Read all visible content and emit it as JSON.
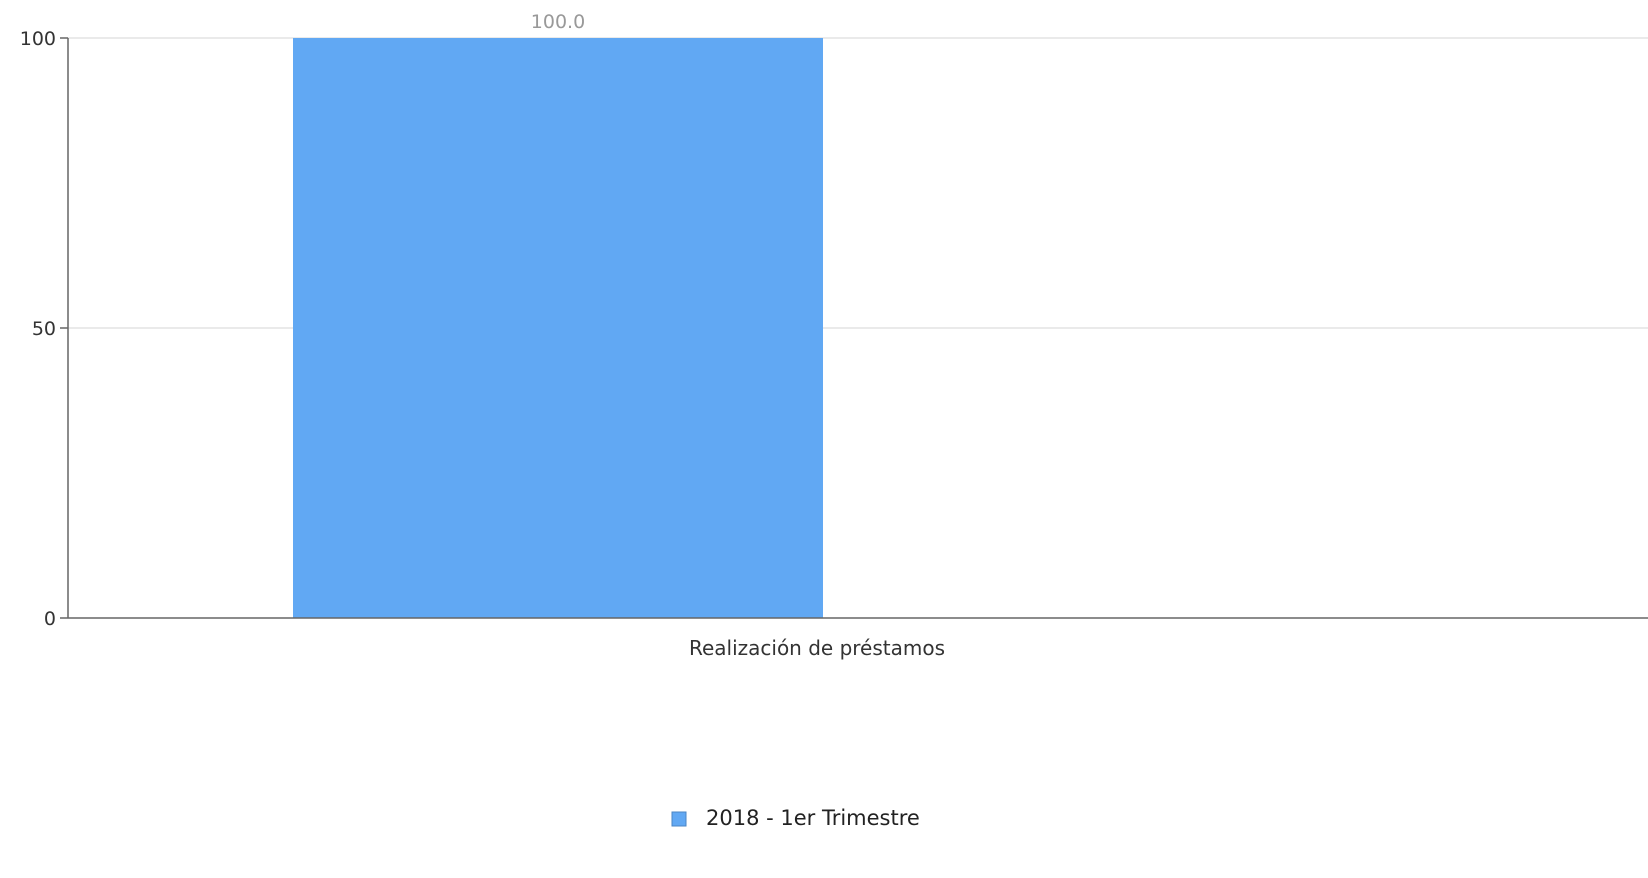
{
  "chart_data": {
    "type": "bar",
    "categories": [
      "Realización de préstamos"
    ],
    "series": [
      {
        "name": "2018 - 1er Trimestre",
        "values": [
          100.0
        ],
        "color": "#61a8f3"
      }
    ],
    "data_labels": [
      "100.0"
    ],
    "ylim": [
      0,
      100
    ],
    "yticks": [
      0,
      50,
      100
    ],
    "grid": true,
    "legend_position": "bottom-center"
  }
}
